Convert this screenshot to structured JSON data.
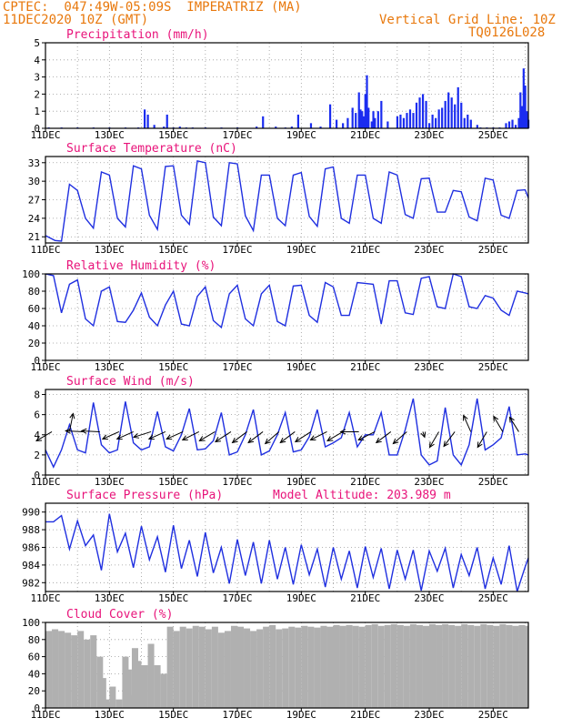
{
  "header": {
    "line1": "CPTEC:  047:49W-05:09S  IMPERATRIZ (MA)",
    "line2": "11DEC2020 10Z (GMT)",
    "vgrid": "Vertical Grid Line: 10Z",
    "code": "TQ0126L028"
  },
  "colors": {
    "header": "#e8780c",
    "title": "#e8137a",
    "line": "#1f2fe0",
    "bar": "#1a2cf0",
    "cloud": "#b0b0b0"
  },
  "chart_data": [
    {
      "type": "bar",
      "title": "Precipitation (mm/h)",
      "x_start_day": 11,
      "x_end_day": 26.1,
      "ylim": [
        0,
        5
      ],
      "yticks": [
        0,
        1,
        2,
        3,
        4,
        5
      ],
      "xticks": [
        "11DEC",
        "13DEC",
        "15DEC",
        "17DEC",
        "19DEC",
        "21DEC",
        "23DEC",
        "25DEC"
      ],
      "grid": true,
      "x": [
        11.1,
        11.5,
        12.0,
        12.5,
        13.0,
        13.5,
        13.9,
        14.1,
        14.2,
        14.4,
        14.7,
        14.8,
        15.0,
        15.2,
        15.4,
        15.6,
        16.0,
        16.5,
        17.0,
        17.6,
        17.8,
        18.2,
        18.5,
        18.7,
        18.9,
        19.3,
        19.6,
        19.9,
        20.1,
        20.3,
        20.45,
        20.6,
        20.7,
        20.8,
        20.85,
        20.9,
        20.95,
        21.0,
        21.05,
        21.1,
        21.2,
        21.25,
        21.3,
        21.4,
        21.5,
        21.7,
        22.0,
        22.1,
        22.2,
        22.3,
        22.4,
        22.5,
        22.6,
        22.7,
        22.8,
        22.9,
        23.0,
        23.1,
        23.2,
        23.3,
        23.4,
        23.5,
        23.6,
        23.7,
        23.8,
        23.9,
        24.0,
        24.1,
        24.2,
        24.3,
        24.5,
        24.6,
        24.8,
        25.0,
        25.2,
        25.4,
        25.5,
        25.6,
        25.7,
        25.8,
        25.85,
        25.9,
        25.95,
        26.0,
        26.05,
        26.1
      ],
      "values": [
        0.05,
        0.05,
        0.05,
        0.05,
        0.05,
        0.05,
        0.05,
        1.1,
        0.8,
        0.2,
        0.1,
        0.8,
        0.05,
        0.1,
        0.05,
        0.05,
        0.05,
        0.05,
        0.05,
        0.1,
        0.7,
        0.1,
        0.05,
        0.1,
        0.8,
        0.3,
        0.1,
        1.4,
        0.5,
        0.3,
        0.6,
        1.2,
        0.9,
        2.1,
        1.1,
        1.0,
        0.7,
        2.0,
        3.1,
        1.2,
        0.4,
        1.0,
        0.6,
        1.0,
        1.6,
        0.4,
        0.7,
        0.8,
        0.6,
        0.9,
        1.1,
        0.9,
        1.5,
        1.8,
        2.0,
        1.6,
        0.3,
        0.8,
        0.6,
        1.1,
        1.2,
        1.6,
        2.1,
        1.8,
        1.4,
        2.4,
        1.5,
        0.6,
        0.8,
        0.5,
        0.2,
        0.05,
        0.05,
        0.05,
        0.05,
        0.3,
        0.4,
        0.5,
        0.2,
        0.6,
        2.1,
        1.3,
        3.5,
        2.5,
        1.0,
        0.5
      ]
    },
    {
      "type": "line",
      "title": "Surface Temperature (nC)",
      "ylim": [
        20,
        34
      ],
      "yticks": [
        21,
        24,
        27,
        30,
        33
      ],
      "xticks": [
        "11DEC",
        "13DEC",
        "15DEC",
        "17DEC",
        "19DEC",
        "21DEC",
        "23DEC",
        "25DEC"
      ],
      "grid": true,
      "x": [
        11.0,
        11.3,
        11.5,
        11.75,
        12.0,
        12.25,
        12.5,
        12.75,
        13.0,
        13.25,
        13.5,
        13.75,
        14.0,
        14.25,
        14.5,
        14.75,
        15.0,
        15.25,
        15.5,
        15.75,
        16.0,
        16.25,
        16.5,
        16.75,
        17.0,
        17.25,
        17.5,
        17.75,
        18.0,
        18.25,
        18.5,
        18.75,
        19.0,
        19.25,
        19.5,
        19.75,
        20.0,
        20.25,
        20.5,
        20.75,
        21.0,
        21.25,
        21.5,
        21.75,
        22.0,
        22.25,
        22.5,
        22.75,
        23.0,
        23.25,
        23.5,
        23.75,
        24.0,
        24.25,
        24.5,
        24.75,
        25.0,
        25.25,
        25.5,
        25.75,
        26.0,
        26.1
      ],
      "values": [
        21.2,
        20.4,
        20.3,
        29.5,
        28.5,
        24.0,
        22.4,
        31.5,
        31.0,
        24.0,
        22.6,
        32.5,
        32.0,
        24.5,
        22.2,
        32.4,
        32.5,
        24.5,
        23.0,
        33.3,
        33.0,
        24.2,
        22.8,
        33.0,
        32.8,
        24.4,
        22.0,
        31.0,
        31.0,
        24.0,
        22.8,
        31.0,
        31.4,
        24.3,
        22.7,
        32.0,
        32.3,
        24.0,
        23.2,
        31.0,
        31.0,
        24.0,
        23.2,
        31.5,
        31.0,
        24.6,
        24.0,
        30.4,
        30.5,
        25.0,
        25.0,
        28.5,
        28.3,
        24.2,
        23.6,
        30.5,
        30.2,
        24.5,
        24.0,
        28.5,
        28.6,
        27.3
      ]
    },
    {
      "type": "line",
      "title": "Relative Humidity (%)",
      "ylim": [
        0,
        100
      ],
      "yticks": [
        0,
        20,
        40,
        60,
        80,
        100
      ],
      "xticks": [
        "11DEC",
        "13DEC",
        "15DEC",
        "17DEC",
        "19DEC",
        "21DEC",
        "23DEC",
        "25DEC"
      ],
      "grid": true,
      "x": [
        11.0,
        11.25,
        11.5,
        11.75,
        12.0,
        12.25,
        12.5,
        12.75,
        13.0,
        13.25,
        13.5,
        13.75,
        14.0,
        14.25,
        14.5,
        14.75,
        15.0,
        15.25,
        15.5,
        15.75,
        16.0,
        16.25,
        16.5,
        16.75,
        17.0,
        17.25,
        17.5,
        17.75,
        18.0,
        18.25,
        18.5,
        18.75,
        19.0,
        19.25,
        19.5,
        19.75,
        20.0,
        20.25,
        20.5,
        20.75,
        21.0,
        21.25,
        21.5,
        21.75,
        22.0,
        22.25,
        22.5,
        22.75,
        23.0,
        23.25,
        23.5,
        23.75,
        24.0,
        24.25,
        24.5,
        24.75,
        25.0,
        25.25,
        25.5,
        25.75,
        26.0,
        26.1
      ],
      "values": [
        100,
        98,
        55,
        88,
        93,
        48,
        40,
        80,
        85,
        45,
        44,
        58,
        78,
        50,
        40,
        64,
        80,
        42,
        40,
        74,
        85,
        46,
        38,
        77,
        87,
        48,
        40,
        77,
        87,
        45,
        40,
        86,
        87,
        52,
        44,
        90,
        85,
        52,
        52,
        90,
        89,
        88,
        42,
        92,
        92,
        55,
        53,
        95,
        97,
        62,
        60,
        100,
        97,
        62,
        60,
        75,
        72,
        58,
        52,
        80,
        78,
        77
      ]
    },
    {
      "type": "line",
      "title": "Surface Wind (m/s)",
      "ylim": [
        0,
        8.5
      ],
      "yticks": [
        0,
        2,
        4,
        6,
        8
      ],
      "xticks": [
        "11DEC",
        "13DEC",
        "15DEC",
        "17DEC",
        "19DEC",
        "21DEC",
        "23DEC",
        "25DEC"
      ],
      "grid": true,
      "x": [
        11.0,
        11.25,
        11.5,
        11.75,
        12.0,
        12.25,
        12.5,
        12.75,
        13.0,
        13.25,
        13.5,
        13.75,
        14.0,
        14.25,
        14.5,
        14.75,
        15.0,
        15.25,
        15.5,
        15.75,
        16.0,
        16.25,
        16.5,
        16.75,
        17.0,
        17.25,
        17.5,
        17.75,
        18.0,
        18.25,
        18.5,
        18.75,
        19.0,
        19.25,
        19.5,
        19.75,
        20.0,
        20.25,
        20.5,
        20.75,
        21.0,
        21.25,
        21.5,
        21.75,
        22.0,
        22.25,
        22.5,
        22.75,
        23.0,
        23.25,
        23.5,
        23.75,
        24.0,
        24.25,
        24.5,
        24.75,
        25.0,
        25.25,
        25.5,
        25.75,
        26.0,
        26.1
      ],
      "values": [
        2.5,
        0.8,
        2.5,
        5.0,
        2.5,
        2.2,
        7.2,
        3.0,
        2.2,
        2.5,
        7.3,
        3.2,
        2.5,
        2.8,
        6.3,
        2.8,
        2.4,
        4.0,
        6.6,
        2.5,
        2.6,
        3.4,
        6.2,
        2.0,
        2.3,
        4.0,
        6.5,
        2.0,
        2.4,
        4.0,
        6.2,
        2.3,
        2.5,
        3.8,
        6.5,
        2.8,
        3.2,
        3.7,
        6.2,
        2.8,
        4.0,
        4.0,
        6.2,
        2.0,
        2.0,
        4.5,
        7.6,
        2.0,
        1.0,
        1.4,
        6.7,
        2.0,
        1.0,
        3.0,
        7.6,
        2.5,
        3.0,
        3.7,
        6.8,
        2.0,
        2.1,
        2.0
      ],
      "arrows": [
        {
          "day": 11.2,
          "u": -0.85,
          "v": -0.5
        },
        {
          "day": 11.75,
          "u": 0.2,
          "v": 1.0
        },
        {
          "day": 12.2,
          "u": -1.0,
          "v": 0.05
        },
        {
          "day": 12.7,
          "u": -1.0,
          "v": 0.05
        },
        {
          "day": 13.3,
          "u": -0.9,
          "v": -0.4
        },
        {
          "day": 13.75,
          "u": -0.9,
          "v": -0.4
        },
        {
          "day": 14.3,
          "u": -0.95,
          "v": -0.3
        },
        {
          "day": 14.75,
          "u": -0.9,
          "v": -0.4
        },
        {
          "day": 15.3,
          "u": -0.9,
          "v": -0.4
        },
        {
          "day": 15.8,
          "u": -0.9,
          "v": -0.45
        },
        {
          "day": 16.3,
          "u": -0.85,
          "v": -0.5
        },
        {
          "day": 16.8,
          "u": -0.85,
          "v": -0.55
        },
        {
          "day": 17.3,
          "u": -0.8,
          "v": -0.6
        },
        {
          "day": 17.8,
          "u": -0.8,
          "v": -0.6
        },
        {
          "day": 18.3,
          "u": -0.75,
          "v": -0.65
        },
        {
          "day": 18.8,
          "u": -0.8,
          "v": -0.6
        },
        {
          "day": 19.3,
          "u": -0.85,
          "v": -0.55
        },
        {
          "day": 19.8,
          "u": -0.9,
          "v": -0.45
        },
        {
          "day": 20.3,
          "u": -0.85,
          "v": -0.5
        },
        {
          "day": 20.8,
          "u": -1.0,
          "v": 0.0
        },
        {
          "day": 21.3,
          "u": -0.9,
          "v": -0.45
        },
        {
          "day": 21.8,
          "u": -0.8,
          "v": -0.6
        },
        {
          "day": 22.3,
          "u": -0.75,
          "v": -0.65
        },
        {
          "day": 22.8,
          "u": 0.1,
          "v": -0.3
        },
        {
          "day": 23.3,
          "u": -0.5,
          "v": -0.85
        },
        {
          "day": 23.8,
          "u": -0.6,
          "v": -0.8
        },
        {
          "day": 24.3,
          "u": -0.4,
          "v": 0.9
        },
        {
          "day": 24.8,
          "u": -0.5,
          "v": -0.85
        },
        {
          "day": 25.3,
          "u": -0.5,
          "v": 0.85
        },
        {
          "day": 25.8,
          "u": -0.5,
          "v": 0.8
        }
      ]
    },
    {
      "type": "line",
      "title": "Surface Pressure (hPa)",
      "annotation": "Model Altitude: 203.989 m",
      "ylim": [
        981,
        991
      ],
      "yticks": [
        982,
        984,
        986,
        988,
        990
      ],
      "xticks": [
        "11DEC",
        "13DEC",
        "15DEC",
        "17DEC",
        "19DEC",
        "21DEC",
        "23DEC",
        "25DEC"
      ],
      "grid": true,
      "x": [
        11.0,
        11.25,
        11.5,
        11.75,
        12.0,
        12.25,
        12.5,
        12.75,
        13.0,
        13.25,
        13.5,
        13.75,
        14.0,
        14.25,
        14.5,
        14.75,
        15.0,
        15.25,
        15.5,
        15.75,
        16.0,
        16.25,
        16.5,
        16.75,
        17.0,
        17.25,
        17.5,
        17.75,
        18.0,
        18.25,
        18.5,
        18.75,
        19.0,
        19.25,
        19.5,
        19.75,
        20.0,
        20.25,
        20.5,
        20.75,
        21.0,
        21.25,
        21.5,
        21.75,
        22.0,
        22.25,
        22.5,
        22.75,
        23.0,
        23.25,
        23.5,
        23.75,
        24.0,
        24.25,
        24.5,
        24.75,
        25.0,
        25.25,
        25.5,
        25.75,
        26.0,
        26.1
      ],
      "values": [
        988.9,
        988.9,
        989.6,
        985.8,
        989.0,
        986.2,
        987.4,
        983.4,
        989.8,
        985.5,
        987.6,
        983.7,
        988.4,
        984.6,
        987.2,
        983.2,
        988.5,
        983.6,
        986.8,
        982.7,
        987.7,
        983.1,
        986.0,
        981.9,
        986.9,
        982.8,
        986.6,
        981.9,
        986.8,
        982.4,
        986.0,
        981.8,
        986.3,
        982.9,
        985.8,
        981.5,
        986.0,
        982.4,
        985.6,
        981.4,
        986.1,
        982.6,
        985.9,
        981.3,
        985.7,
        982.4,
        985.7,
        981.1,
        985.6,
        983.3,
        985.9,
        981.4,
        985.2,
        982.8,
        986.0,
        981.3,
        984.8,
        981.8,
        986.2,
        981.0,
        983.8,
        984.8
      ]
    },
    {
      "type": "bar",
      "title": "Cloud Cover (%)",
      "ylim": [
        0,
        100
      ],
      "yticks": [
        0,
        20,
        40,
        60,
        80,
        100
      ],
      "xticks": [
        "11DEC",
        "13DEC",
        "15DEC",
        "17DEC",
        "19DEC",
        "21DEC",
        "23DEC",
        "25DEC"
      ],
      "grid": true,
      "x": [
        11.0,
        11.2,
        11.4,
        11.6,
        11.8,
        12.0,
        12.2,
        12.4,
        12.6,
        12.7,
        12.8,
        12.9,
        13.0,
        13.2,
        13.4,
        13.5,
        13.6,
        13.7,
        13.8,
        13.9,
        14.0,
        14.2,
        14.4,
        14.6,
        14.8,
        15.0,
        15.2,
        15.4,
        15.6,
        15.8,
        16.0,
        16.2,
        16.4,
        16.6,
        16.8,
        17.0,
        17.2,
        17.4,
        17.6,
        17.8,
        18.0,
        18.2,
        18.4,
        18.6,
        18.8,
        19.0,
        19.2,
        19.4,
        19.6,
        19.8,
        20.0,
        20.2,
        20.4,
        20.6,
        20.8,
        21.0,
        21.2,
        21.4,
        21.6,
        21.8,
        22.0,
        22.2,
        22.4,
        22.6,
        22.8,
        23.0,
        23.2,
        23.4,
        23.6,
        23.8,
        24.0,
        24.2,
        24.4,
        24.6,
        24.8,
        25.0,
        25.2,
        25.4,
        25.6,
        25.8,
        26.0
      ],
      "values": [
        90,
        92,
        90,
        88,
        85,
        90,
        80,
        85,
        60,
        35,
        10,
        5,
        25,
        10,
        60,
        45,
        15,
        70,
        55,
        20,
        50,
        75,
        50,
        40,
        95,
        90,
        95,
        93,
        96,
        95,
        92,
        95,
        88,
        90,
        96,
        95,
        93,
        90,
        92,
        95,
        97,
        92,
        93,
        95,
        94,
        96,
        95,
        94,
        96,
        95,
        97,
        96,
        97,
        96,
        95,
        97,
        98,
        96,
        97,
        98,
        97,
        96,
        98,
        97,
        96,
        98,
        97,
        98,
        97,
        96,
        98,
        97,
        96,
        98,
        97,
        96,
        98,
        97,
        96,
        97,
        96
      ]
    }
  ]
}
